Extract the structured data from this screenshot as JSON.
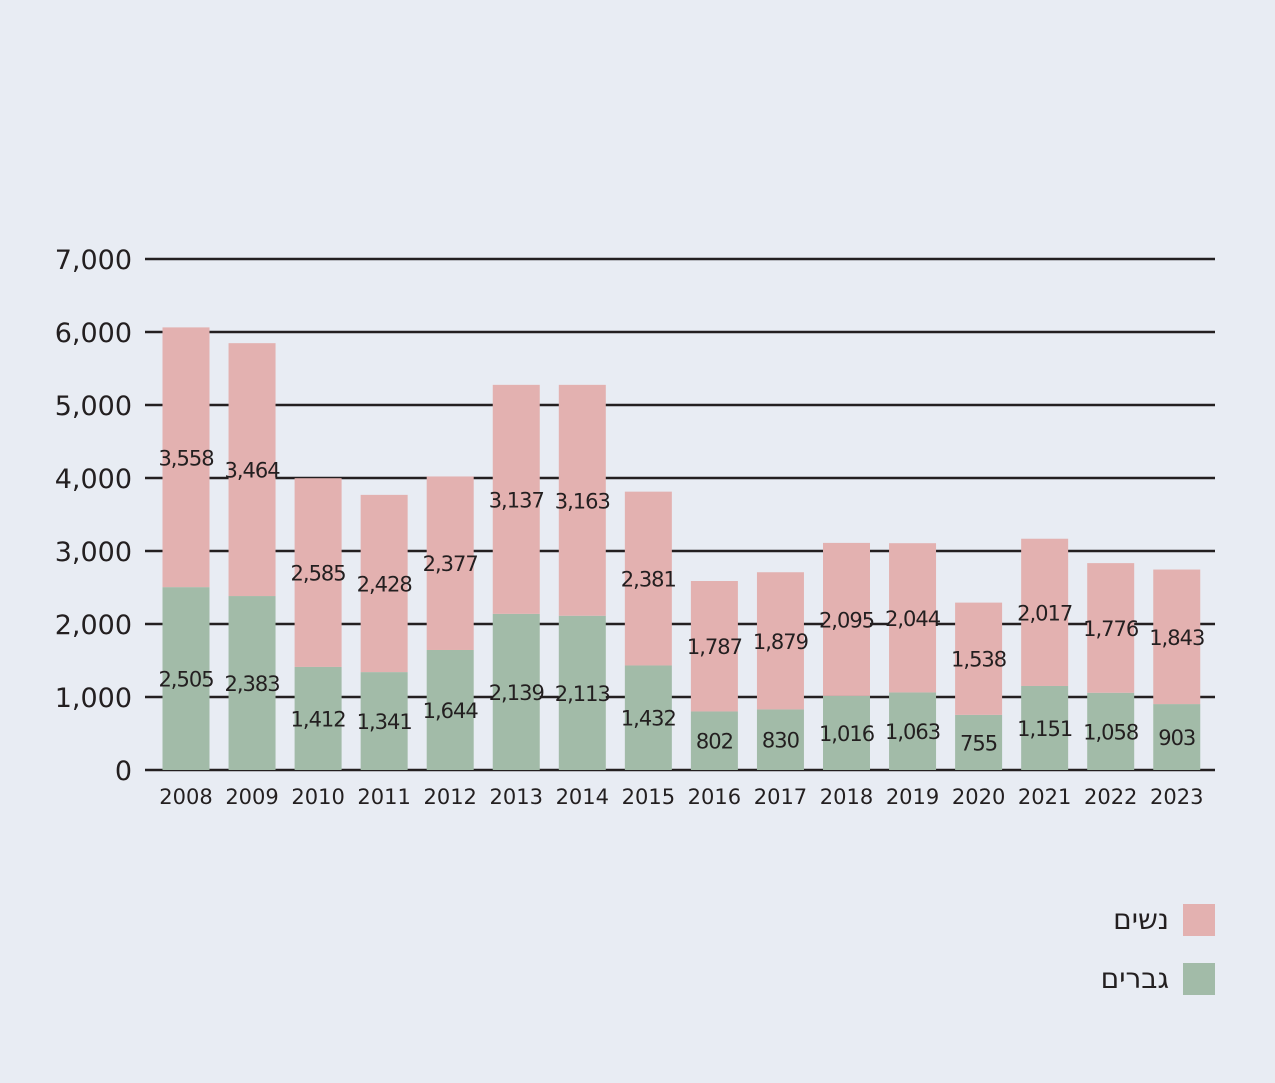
{
  "chart_data": {
    "type": "bar",
    "stacked": true,
    "title": "",
    "xlabel": "",
    "ylabel": "",
    "ylim": [
      0,
      7000
    ],
    "yticks": [
      0,
      1000,
      2000,
      3000,
      4000,
      5000,
      6000,
      7000
    ],
    "ytick_labels": [
      "0",
      "1,000",
      "2,000",
      "3,000",
      "4,000",
      "5,000",
      "6,000",
      "7,000"
    ],
    "grid": true,
    "legend_position": "bottom-right",
    "categories": [
      "2008",
      "2009",
      "2010",
      "2011",
      "2012",
      "2013",
      "2014",
      "2015",
      "2016",
      "2017",
      "2018",
      "2019",
      "2020",
      "2021",
      "2022",
      "2023"
    ],
    "series": [
      {
        "name": "גברים",
        "color": "#a2bba8",
        "values": [
          2505,
          2383,
          1412,
          1341,
          1644,
          2139,
          2113,
          1432,
          802,
          830,
          1016,
          1063,
          755,
          1151,
          1058,
          903
        ],
        "labels": [
          "2,505",
          "2,383",
          "1,412",
          "1,341",
          "1,644",
          "2,139",
          "2,113",
          "1,432",
          "802",
          "830",
          "1,016",
          "1,063",
          "755",
          "1,151",
          "1,058",
          "903"
        ]
      },
      {
        "name": "נשים",
        "color": "#e3b1b0",
        "values": [
          3558,
          3464,
          2585,
          2428,
          2377,
          3137,
          3163,
          2381,
          1787,
          1879,
          2095,
          2044,
          1538,
          2017,
          1776,
          1843
        ],
        "labels": [
          "3,558",
          "3,464",
          "2,585",
          "2,428",
          "2,377",
          "3,137",
          "3,163",
          "2,381",
          "1,787",
          "1,879",
          "2,095",
          "2,044",
          "1,538",
          "2,017",
          "1,776",
          "1,843"
        ]
      }
    ]
  },
  "legend": {
    "women": {
      "label": "נשים",
      "color": "#e3b1b0"
    },
    "men": {
      "label": "גברים",
      "color": "#a2bba8"
    }
  }
}
